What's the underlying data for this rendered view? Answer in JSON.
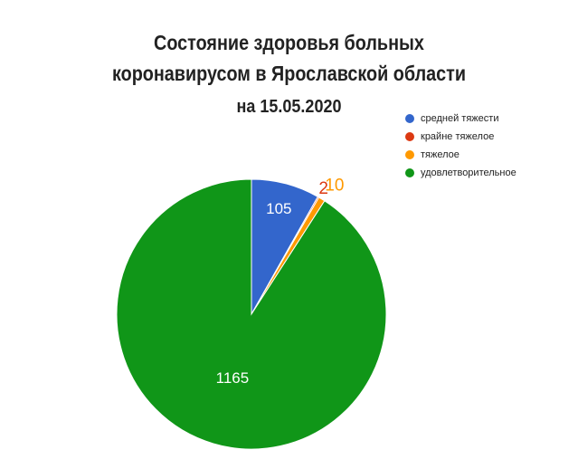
{
  "chart_data": {
    "type": "pie",
    "title": [
      "Состояние здоровья больных",
      "коронавирусом в Ярославской области"
    ],
    "subtitle": "на 15.05.2020",
    "slices": [
      {
        "name": "средней тяжести",
        "value": 105,
        "color": "#3366cc"
      },
      {
        "name": "крайне тяжелое",
        "value": 2,
        "color": "#dc3912"
      },
      {
        "name": "тяжелое",
        "value": 10,
        "color": "#ff9900"
      },
      {
        "name": "удовлетворительное",
        "value": 1165,
        "color": "#109618"
      }
    ],
    "legend_position": "top-right",
    "start_angle_deg": 0,
    "direction": "clockwise"
  }
}
